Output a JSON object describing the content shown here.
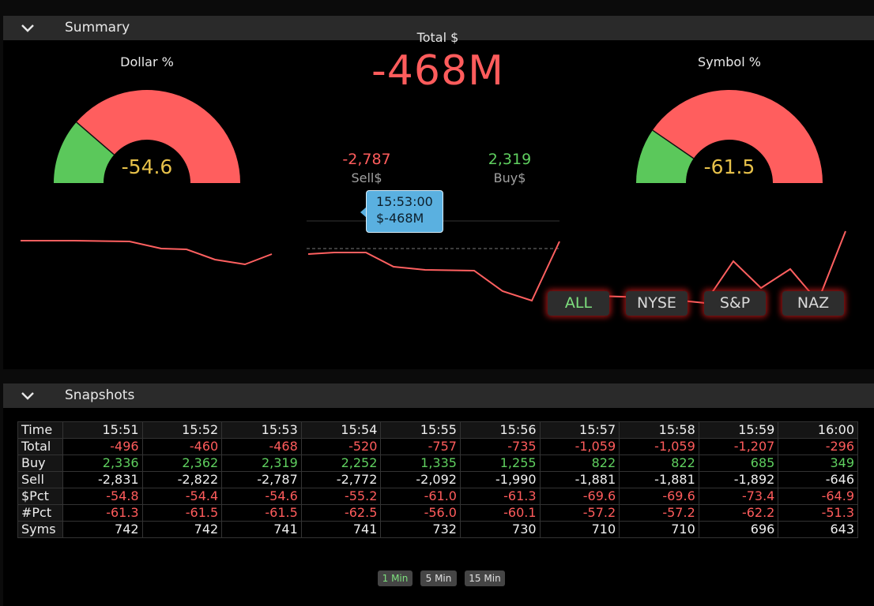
{
  "summary": {
    "title": "Summary",
    "dollar_gauge": {
      "label": "Dollar %",
      "value": "-54.6",
      "buy_fraction": 0.227
    },
    "symbol_gauge": {
      "label": "Symbol %",
      "value": "-61.5",
      "buy_fraction": 0.192
    },
    "total": {
      "label": "Total $",
      "value": "-468M"
    },
    "sell": {
      "value": "-2,787",
      "label": "Sell$"
    },
    "buy": {
      "value": "2,319",
      "label": "Buy$"
    },
    "tooltip": {
      "time": "15:53:00",
      "value": "$-468M"
    },
    "filters": [
      "ALL",
      "NYSE",
      "S&P",
      "NAZ"
    ],
    "active_filter": "ALL",
    "colors": {
      "negative": "#ff5c5c",
      "positive": "#5fcf5f",
      "gauge_value": "#e7c14a",
      "tooltip": "#5ab0e0"
    }
  },
  "snapshots": {
    "title": "Snapshots",
    "rows": [
      {
        "label": "Time",
        "style": "header",
        "values": [
          "15:51",
          "15:52",
          "15:53",
          "15:54",
          "15:55",
          "15:56",
          "15:57",
          "15:58",
          "15:59",
          "16:00"
        ]
      },
      {
        "label": "Total",
        "style": "neg",
        "values": [
          "-496",
          "-460",
          "-468",
          "-520",
          "-757",
          "-735",
          "-1,059",
          "-1,059",
          "-1,207",
          "-296"
        ]
      },
      {
        "label": "Buy",
        "style": "pos",
        "values": [
          "2,336",
          "2,362",
          "2,319",
          "2,252",
          "1,335",
          "1,255",
          "822",
          "822",
          "685",
          "349"
        ]
      },
      {
        "label": "Sell",
        "style": "wht",
        "values": [
          "-2,831",
          "-2,822",
          "-2,787",
          "-2,772",
          "-2,092",
          "-1,990",
          "-1,881",
          "-1,881",
          "-1,892",
          "-646"
        ]
      },
      {
        "label": "$Pct",
        "style": "neg",
        "values": [
          "-54.8",
          "-54.4",
          "-54.6",
          "-55.2",
          "-61.0",
          "-61.3",
          "-69.6",
          "-69.6",
          "-73.4",
          "-64.9"
        ]
      },
      {
        "label": "#Pct",
        "style": "neg",
        "values": [
          "-61.3",
          "-61.5",
          "-61.5",
          "-62.5",
          "-56.0",
          "-60.1",
          "-57.2",
          "-57.2",
          "-62.2",
          "-51.3"
        ]
      },
      {
        "label": "Syms",
        "style": "wht",
        "values": [
          "742",
          "742",
          "741",
          "741",
          "732",
          "730",
          "710",
          "710",
          "696",
          "643"
        ]
      }
    ],
    "intervals": [
      "1 Min",
      "5 Min",
      "15 Min"
    ],
    "active_interval": "1 Min"
  }
}
